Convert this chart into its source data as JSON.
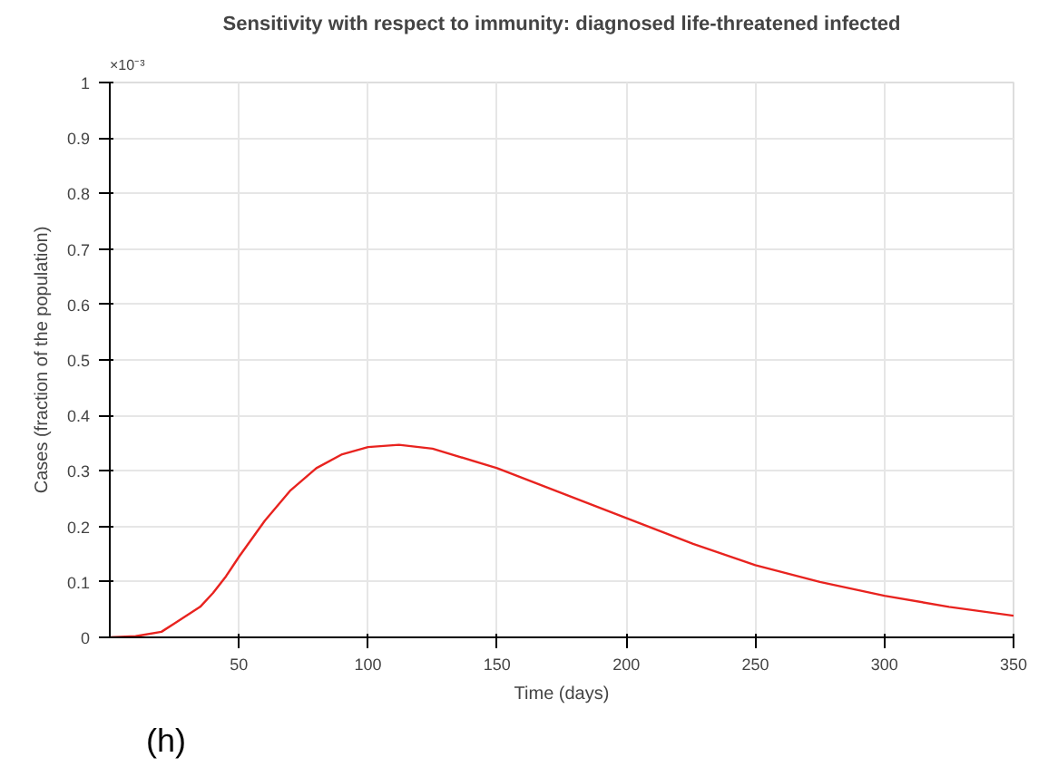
{
  "chart_data": {
    "type": "line",
    "title": "Sensitivity with respect to immunity: diagnosed life-threatened infected",
    "xlabel": "Time (days)",
    "ylabel": "Cases (fraction of the population)",
    "annotations": [
      "×10⁻³",
      "(h)"
    ],
    "x": [
      0,
      10,
      20,
      25,
      30,
      35,
      40,
      45,
      50,
      60,
      70,
      80,
      90,
      100,
      112,
      125,
      150,
      175,
      200,
      225,
      250,
      275,
      300,
      325,
      350
    ],
    "series": [
      {
        "color": "#e8231f",
        "values": [
          0,
          0.002,
          0.01,
          0.025,
          0.04,
          0.055,
          0.08,
          0.11,
          0.145,
          0.21,
          0.265,
          0.305,
          0.33,
          0.343,
          0.347,
          0.34,
          0.305,
          0.26,
          0.215,
          0.17,
          0.13,
          0.1,
          0.075,
          0.055,
          0.039
        ]
      }
    ],
    "xlim": [
      0,
      350
    ],
    "ylim": [
      0,
      1
    ],
    "xticks": [
      50,
      100,
      150,
      200,
      250,
      300,
      350
    ],
    "yticks": [
      0,
      0.1,
      0.2,
      0.3,
      0.4,
      0.5,
      0.6,
      0.7,
      0.8,
      0.9,
      1
    ],
    "grid": true,
    "line_style": "solid",
    "marker": "none"
  }
}
